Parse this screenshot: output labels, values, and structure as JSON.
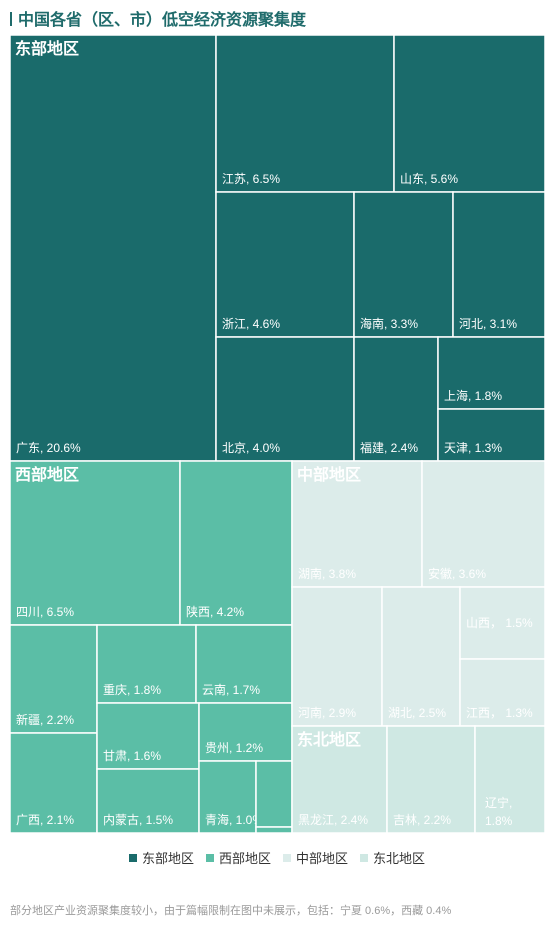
{
  "title": "中国各省（区、市）低空经济资源聚集度",
  "footnote": "部分地区产业资源聚集度较小，由于篇幅限制在图中未展示，包括：宁夏 0.6%，西藏 0.4%",
  "colors": {
    "东部地区": "#1a6b6b",
    "西部地区": "#5bbea6",
    "中部地区": "#dcecea",
    "东北地区": "#cfe8e3"
  },
  "label_colors": {
    "东部地区": "#ffffff",
    "西部地区": "#ffffff",
    "中部地区": "#ffffff",
    "东北地区": "#ffffff"
  },
  "chart_data": {
    "type": "treemap",
    "unit": "%",
    "groups": [
      {
        "name": "东部地区",
        "items": [
          {
            "label": "广东, 20.6%",
            "value": 20.6
          },
          {
            "label": "江苏, 6.5%",
            "value": 6.5
          },
          {
            "label": "山东, 5.6%",
            "value": 5.6
          },
          {
            "label": "浙江, 4.6%",
            "value": 4.6
          },
          {
            "label": "海南, 3.3%",
            "value": 3.3
          },
          {
            "label": "河北, 3.1%",
            "value": 3.1
          },
          {
            "label": "北京, 4.0%",
            "value": 4.0
          },
          {
            "label": "福建, 2.4%",
            "value": 2.4
          },
          {
            "label": "上海, 1.8%",
            "value": 1.8
          },
          {
            "label": "天津, 1.3%",
            "value": 1.3
          }
        ]
      },
      {
        "name": "西部地区",
        "items": [
          {
            "label": "四川, 6.5%",
            "value": 6.5
          },
          {
            "label": "陕西, 4.2%",
            "value": 4.2
          },
          {
            "label": "新疆, 2.2%",
            "value": 2.2
          },
          {
            "label": "重庆, 1.8%",
            "value": 1.8
          },
          {
            "label": "云南, 1.7%",
            "value": 1.7
          },
          {
            "label": "广西, 2.1%",
            "value": 2.1
          },
          {
            "label": "甘肃, 1.6%",
            "value": 1.6
          },
          {
            "label": "贵州, 1.2%",
            "value": 1.2
          },
          {
            "label": "内蒙古, 1.5%",
            "value": 1.5
          },
          {
            "label": "青海, 1.0%",
            "value": 1.0
          },
          {
            "label": "",
            "value": 0.6
          },
          {
            "label": "",
            "value": 0.4
          }
        ]
      },
      {
        "name": "中部地区",
        "items": [
          {
            "label": "湖南, 3.8%",
            "value": 3.8
          },
          {
            "label": "安徽, 3.6%",
            "value": 3.6
          },
          {
            "label": "河南, 2.9%",
            "value": 2.9
          },
          {
            "label": "湖北, 2.5%",
            "value": 2.5
          },
          {
            "label": "山西， 1.5%",
            "value": 1.5
          },
          {
            "label": "江西， 1.3%",
            "value": 1.3
          }
        ]
      },
      {
        "name": "东北地区",
        "items": [
          {
            "label": "黑龙江, 2.4%",
            "value": 2.4
          },
          {
            "label": "吉林, 2.2%",
            "value": 2.2
          },
          {
            "label": "辽宁, 1.8%",
            "value": 1.8
          }
        ]
      }
    ],
    "legend": [
      "东部地区",
      "西部地区",
      "中部地区",
      "东北地区"
    ],
    "legend_position": "bottom"
  }
}
